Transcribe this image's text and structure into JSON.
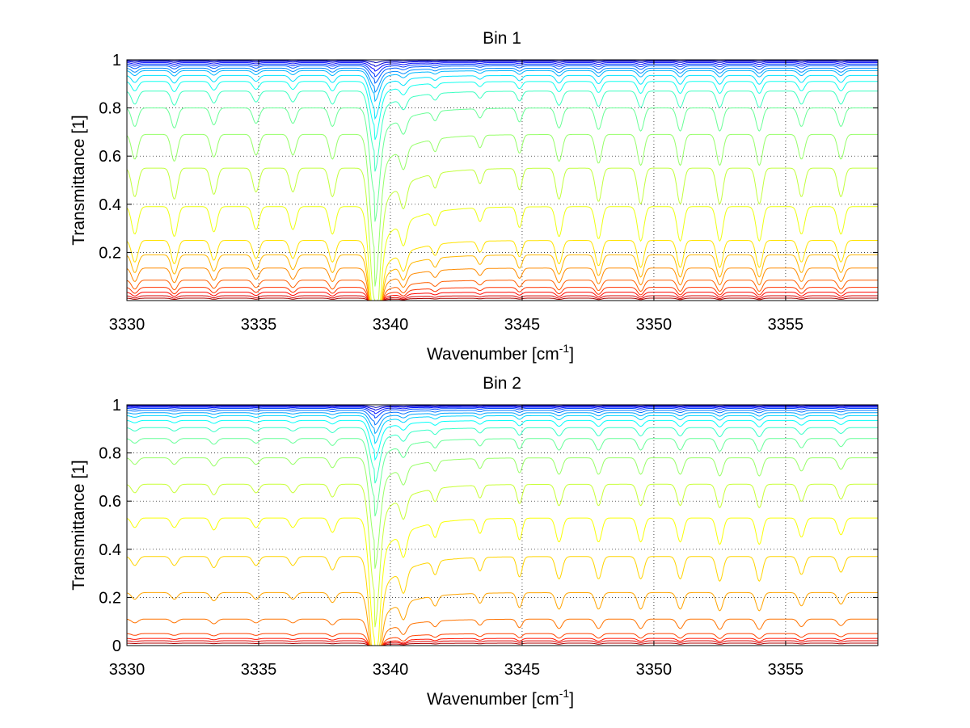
{
  "chart_data": [
    {
      "type": "line",
      "title": "Bin 1",
      "xlabel": "Wavenumber [cm",
      "xlabel_sup": "-1",
      "xlabel_suffix": "]",
      "ylabel": "Transmittance [1]",
      "xlim": [
        3330,
        3358.5
      ],
      "ylim": [
        0,
        1
      ],
      "xticks": [
        3330,
        3335,
        3340,
        3345,
        3350,
        3355
      ],
      "xtick_labels": [
        "3330",
        "3335",
        "3340",
        "3345",
        "3350",
        "3355"
      ],
      "yticks": [
        0.2,
        0.4,
        0.6,
        0.8,
        1
      ],
      "ytick_labels": [
        "0.2",
        "0.4",
        "0.6",
        "0.8",
        "1"
      ],
      "grid": true,
      "series_baselines": [
        0.0,
        0.01,
        0.02,
        0.035,
        0.055,
        0.085,
        0.135,
        0.19,
        0.25,
        0.39,
        0.55,
        0.69,
        0.8,
        0.87,
        0.91,
        0.935,
        0.955,
        0.965,
        0.975,
        0.982,
        0.988,
        0.993,
        0.997,
        1.0
      ],
      "lines": [
        {
          "center": 3339.4,
          "width": 0.18,
          "depth": 0.55,
          "wing": 1.1
        },
        {
          "center": 3340.5,
          "width": 0.12,
          "depth": 0.1,
          "wing": 0
        },
        {
          "center": 3330.3,
          "width": 0.12,
          "depth": 0.12,
          "wing": 0
        },
        {
          "center": 3331.8,
          "width": 0.12,
          "depth": 0.13,
          "wing": 0
        },
        {
          "center": 3333.3,
          "width": 0.12,
          "depth": 0.11,
          "wing": 0
        },
        {
          "center": 3334.9,
          "width": 0.12,
          "depth": 0.1,
          "wing": 0
        },
        {
          "center": 3336.3,
          "width": 0.12,
          "depth": 0.1,
          "wing": 0
        },
        {
          "center": 3337.8,
          "width": 0.12,
          "depth": 0.12,
          "wing": 0
        },
        {
          "center": 3341.7,
          "width": 0.1,
          "depth": 0.06,
          "wing": 0
        },
        {
          "center": 3343.4,
          "width": 0.1,
          "depth": 0.06,
          "wing": 0
        },
        {
          "center": 3344.9,
          "width": 0.1,
          "depth": 0.09,
          "wing": 0
        },
        {
          "center": 3346.4,
          "width": 0.12,
          "depth": 0.13,
          "wing": 0
        },
        {
          "center": 3347.9,
          "width": 0.12,
          "depth": 0.14,
          "wing": 0
        },
        {
          "center": 3349.5,
          "width": 0.12,
          "depth": 0.15,
          "wing": 0
        },
        {
          "center": 3351.0,
          "width": 0.12,
          "depth": 0.15,
          "wing": 0
        },
        {
          "center": 3352.5,
          "width": 0.12,
          "depth": 0.15,
          "wing": 0
        },
        {
          "center": 3354.0,
          "width": 0.12,
          "depth": 0.15,
          "wing": 0
        },
        {
          "center": 3355.6,
          "width": 0.12,
          "depth": 0.12,
          "wing": 0
        },
        {
          "center": 3357.1,
          "width": 0.12,
          "depth": 0.12,
          "wing": 0
        }
      ]
    },
    {
      "type": "line",
      "title": "Bin 2",
      "xlabel": "Wavenumber [cm",
      "xlabel_sup": "-1",
      "xlabel_suffix": "]",
      "ylabel": "Transmittance [1]",
      "xlim": [
        3330,
        3358.5
      ],
      "ylim": [
        0,
        1
      ],
      "xticks": [
        3330,
        3335,
        3340,
        3345,
        3350,
        3355
      ],
      "xtick_labels": [
        "3330",
        "3335",
        "3340",
        "3345",
        "3350",
        "3355"
      ],
      "yticks": [
        0,
        0.2,
        0.4,
        0.6,
        0.8,
        1
      ],
      "ytick_labels": [
        "0",
        "0.2",
        "0.4",
        "0.6",
        "0.8",
        "1"
      ],
      "grid": true,
      "series_baselines": [
        0.0,
        0.01,
        0.02,
        0.03,
        0.05,
        0.11,
        0.22,
        0.37,
        0.53,
        0.67,
        0.78,
        0.86,
        0.905,
        0.935,
        0.955,
        0.967,
        0.977,
        0.985,
        0.99,
        0.994,
        0.997,
        1.0
      ],
      "lines": [
        {
          "center": 3339.4,
          "width": 0.18,
          "depth": 0.5,
          "wing": 1.1
        },
        {
          "center": 3340.5,
          "width": 0.12,
          "depth": 0.1,
          "wing": 0
        },
        {
          "center": 3330.3,
          "width": 0.12,
          "depth": 0.04,
          "wing": 0
        },
        {
          "center": 3331.8,
          "width": 0.12,
          "depth": 0.04,
          "wing": 0
        },
        {
          "center": 3333.3,
          "width": 0.12,
          "depth": 0.05,
          "wing": 0
        },
        {
          "center": 3334.9,
          "width": 0.12,
          "depth": 0.04,
          "wing": 0
        },
        {
          "center": 3336.3,
          "width": 0.12,
          "depth": 0.04,
          "wing": 0
        },
        {
          "center": 3337.8,
          "width": 0.12,
          "depth": 0.06,
          "wing": 0
        },
        {
          "center": 3341.7,
          "width": 0.1,
          "depth": 0.06,
          "wing": 0
        },
        {
          "center": 3343.4,
          "width": 0.1,
          "depth": 0.06,
          "wing": 0
        },
        {
          "center": 3344.9,
          "width": 0.1,
          "depth": 0.09,
          "wing": 0
        },
        {
          "center": 3346.4,
          "width": 0.12,
          "depth": 0.1,
          "wing": 0
        },
        {
          "center": 3347.9,
          "width": 0.12,
          "depth": 0.1,
          "wing": 0
        },
        {
          "center": 3349.5,
          "width": 0.12,
          "depth": 0.1,
          "wing": 0
        },
        {
          "center": 3351.0,
          "width": 0.12,
          "depth": 0.1,
          "wing": 0
        },
        {
          "center": 3352.5,
          "width": 0.12,
          "depth": 0.11,
          "wing": 0
        },
        {
          "center": 3354.0,
          "width": 0.12,
          "depth": 0.11,
          "wing": 0
        },
        {
          "center": 3355.6,
          "width": 0.12,
          "depth": 0.08,
          "wing": 0
        },
        {
          "center": 3357.1,
          "width": 0.12,
          "depth": 0.07,
          "wing": 0
        }
      ]
    }
  ]
}
